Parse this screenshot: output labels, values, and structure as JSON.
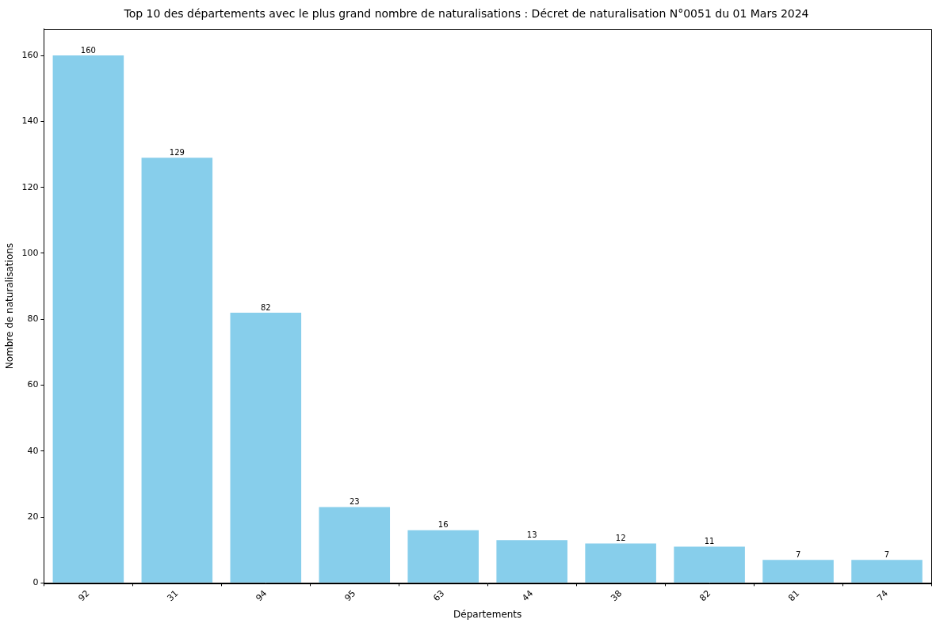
{
  "chart_data": {
    "type": "bar",
    "title": "Top 10 des départements avec le plus grand nombre de naturalisations : Décret de naturalisation N°0051 du 01 Mars 2024",
    "x_label": "Départements",
    "y_label": "Nombre de naturalisations",
    "categories": [
      "92",
      "31",
      "94",
      "95",
      "63",
      "44",
      "38",
      "82",
      "81",
      "74"
    ],
    "values": [
      160,
      129,
      82,
      23,
      16,
      13,
      12,
      11,
      7,
      7
    ],
    "color": "#87ceeb",
    "ylim": [
      0,
      168
    ],
    "yticks": [
      0,
      20,
      40,
      60,
      80,
      100,
      120,
      140,
      160
    ],
    "grid": false,
    "data_labels": true
  }
}
